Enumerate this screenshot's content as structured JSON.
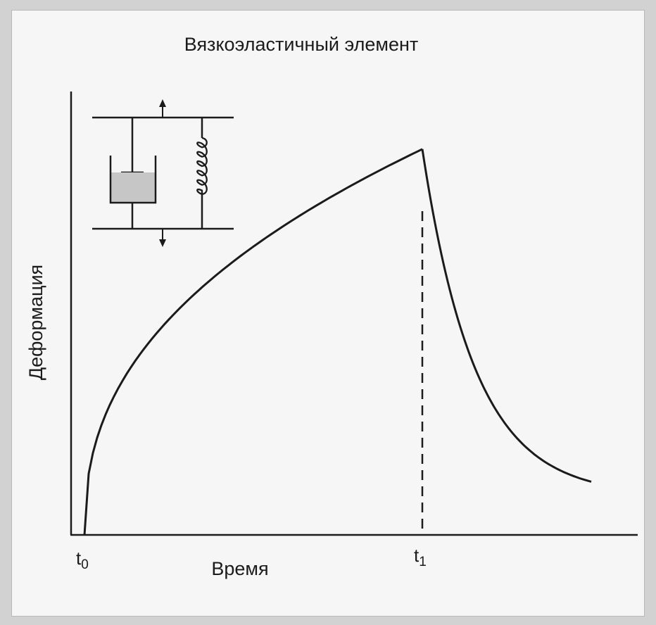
{
  "chart_data": {
    "type": "line",
    "title": "Вязкоэластичный элемент",
    "xlabel": "Время",
    "ylabel": "Деформация",
    "ticks": [
      {
        "base": "t",
        "sub": "0",
        "x": 0
      },
      {
        "base": "t",
        "sub": "1",
        "x": 1
      }
    ],
    "xlim": [
      0,
      1.5
    ],
    "ylim": [
      0,
      1.0
    ],
    "grid": false,
    "series": [
      {
        "segments": [
          {
            "phase": "loading",
            "x_start": 0,
            "x_end": 1,
            "y_start": 0,
            "y_end": 0.87
          },
          {
            "phase": "recovery",
            "x_start": 1,
            "x_end": 1.5,
            "y_start": 0.87,
            "y_end": 0.12
          }
        ]
      }
    ],
    "annotations": [
      {
        "type": "dashed-vertical-line",
        "x": 1
      },
      {
        "type": "inset-schematic",
        "content": "dashpot-parallel-spring"
      }
    ],
    "colors": {
      "line": "#1b1b1b",
      "dashpot_fill": "#c6c6c6",
      "background": "#f6f6f6"
    }
  }
}
